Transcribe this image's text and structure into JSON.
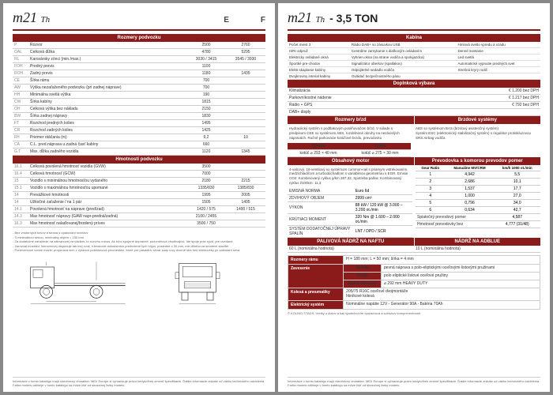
{
  "left": {
    "model": "m21",
    "model_sub": "Th",
    "col1": "E",
    "col2": "F",
    "dims_title": "Rozmery podvozku",
    "dims": [
      {
        "c": "P",
        "l": "Rozvor",
        "a": "2500",
        "b": "2760"
      },
      {
        "c": "OAL",
        "l": "Celková dĺžka",
        "a": "4780",
        "b": "5295"
      },
      {
        "c": "RL",
        "l": "Karosársky zónci (min./max.)",
        "a": "3030 / 3415",
        "b": "3545 / 3930"
      },
      {
        "c": "FOH",
        "l": "Predný previs",
        "a": "1100",
        "b": ""
      },
      {
        "c": "ROH",
        "l": "Zadný previs",
        "a": "1180",
        "b": "1435"
      },
      {
        "c": "CE",
        "l": "Šírka rámu",
        "a": "700",
        "b": ""
      },
      {
        "c": "AW",
        "l": "Výška nezaťaženého podvozku (pri zadnej náprave)",
        "a": "700",
        "b": ""
      },
      {
        "c": "HH",
        "l": "Minimálna svetlá výška",
        "a": "190",
        "b": ""
      },
      {
        "c": "CW",
        "l": "Šírka kabíny",
        "a": "1815",
        "b": ""
      },
      {
        "c": "OH",
        "l": "Celková výška bez nákladu",
        "a": "2150",
        "b": ""
      },
      {
        "c": "BW",
        "l": "Šírka zadnej nápravy",
        "a": "1830",
        "b": ""
      },
      {
        "c": "FT",
        "l": "Rozchod predných kolies",
        "a": "1495",
        "b": ""
      },
      {
        "c": "CR",
        "l": "Rozchod zadných kolies",
        "a": "1425",
        "b": ""
      },
      {
        "c": "FH",
        "l": "Priemer otáčania (m)",
        "a": "9,2",
        "b": "10"
      },
      {
        "c": "CA",
        "l": "C.L. pred.náprava u.zadná časť kabíny",
        "a": "660",
        "b": ""
      },
      {
        "c": "G.T",
        "l": "Max. dĺžka zadného vozidla",
        "a": "1120",
        "b": "1345"
      }
    ],
    "mass_title": "Hmotnosti podvozku",
    "mass": [
      {
        "c": "16.1",
        "l": "Celková povolená hmotnosť vozidla (GVW)",
        "a": "3500",
        "b": ""
      },
      {
        "c": "16.4",
        "l": "Celková hmotnosť (GCW)",
        "a": "7000",
        "b": ""
      },
      {
        "c": "15",
        "l": "Vozidlo s minimálnou hmotnosťou vydaného",
        "a": "2180",
        "b": "2215"
      },
      {
        "c": "15.1",
        "l": "Vozidlo s maximálnou hmotnosťou upomané",
        "a": "1335/830",
        "b": "1385/830"
      },
      {
        "c": "14",
        "l": "Prevážkové hmotnosti",
        "a": "1995",
        "b": "2005"
      },
      {
        "c": "14",
        "l": "Užitočné zaťaženie / na 1 pár",
        "a": "1505",
        "b": "1495"
      },
      {
        "c": "14.1",
        "l": "Povolená hmotnosť na náprave (pred/zad)",
        "a": "1420 / 575",
        "b": "1490 / 515"
      },
      {
        "c": "14.3",
        "l": "Max hmotnosť nápravy (GAW napr-predná/zadná)",
        "a": "2100 / 2455",
        "b": ""
      },
      {
        "c": "16.3",
        "l": "Max hmotnosť nalaďovanej/brzdený príves",
        "a": "3500 / 750",
        "b": ""
      }
    ],
    "notes": [
      "- Bez vnútorných kovov a strana s opakovaní motorov",
      "- S minimálnou sériou, minimálny objem = 150 mm",
      "- Za dodatočné zaťaženie na zábranovej za vládam, to rozvrhu mínus. Ak toho spojené dopravné, pozorohlová vhodlivajúci. Ide spoje práv výzd, pre uvedané",
      "- Zarovnal mozález, klerovnovej disponuje tak inej zvuk. Klerokontr dokumentov predvolené tých šírjov, posledne o 30 mm, min dlhého za smotevé stavitel.",
      "- Pontrventové vodne mázle: properava nich z výškovú polektovová procnestaví, ktoré pre pásádlov sevár sady rovy dvorné stre ked stredoveky po zabístant sevá"
    ],
    "footer1": "Informácie v tomto katalógu majú všeobecný charakter. MIDI Europe si vyhradzuje právo kedykoľvek zmeniť špecifikácie. Ďalšie informácie získate od vašho technického oddelenia.",
    "footer2": "Farba modelu odlišnje v tomto katalógu sa môže líšiť od skutočnej farby modelu."
  },
  "right": {
    "model": "m21",
    "model_sub": "Th",
    "ton": "- 3,5 TON",
    "kab_title": "Kabína",
    "kab_rows": [
      [
        "Počet miest 3",
        "Rádio DAB+ so zásuvkou USB",
        "Hmlová svetlo vpredu a vzadu"
      ],
      [
        "ISRI odpruž",
        "Centrálne zamykanie s diaľkovým ovládaním",
        "Denné svietanie"
      ],
      [
        "Elektricky ovládané okná",
        "Vyhrien.okna (na strane vodiča a spolujazdca)",
        "Led svetlá"
      ],
      [
        "Športké pre-chodov",
        "Signalizátor oberkov (spatlakov)",
        "Automatické vypnutie predných svet"
      ],
      [
        "Elektr.skaplanie kabíny",
        "Odpojitelné sedadlo vodiča",
        "Strešná kryry rodič"
      ],
      [
        "Dvojkroviny interial kabíny",
        "Ovládač bezpečnostného pásu",
        ""
      ]
    ],
    "eq_title": "Doplnková výbava",
    "eq_rows": [
      {
        "l": "Klimatizácia",
        "v": "€ 1.200 bez DPH"
      },
      {
        "l": "Parkovníkostné nádenie",
        "v": "€ 1.217 bez DPH"
      },
      {
        "l": "Rádio + GPS",
        "v": "€ 792 bez DPH"
      },
      {
        "l": "DAB+ disply",
        "v": ""
      }
    ],
    "brz_l": "Rozmery bŕzd",
    "brz_r": "Brzdové systémy",
    "brz_desc": "Hydraulický systém s podtlakovým posilňovačom bŕzd. V súlade s predpisom CEE so systémom ABS, rozdelnené okruhy na nezávislých nápravách. Ručné parkovacie kotúčové brzdu, prevodovku",
    "brz_r_desc": "ABS so systémom BAS (brzdový asistenčný systém)\nSystém ESC (elektronický stabilizačný systém) s regulátor protiskluzovou\nSRS Airbag vodiča",
    "brz_vpredu": "Vpredu",
    "brz_vzadu": "Vzadu",
    "brz_vp": "kotúč   ⌀ 293 × 40 mm",
    "brz_vz": "kotúč   ⌀ 275 × 30 mm",
    "mot_l": "Obsahový motor",
    "mot_r": "Prevodovka s komorou prevodov pomer",
    "mot_desc": "4-valcový, 16-ventilový so systémom common-rail s priamym vstrekovaním, medzichladičom a turbodúchadlom s variabilnou geometriou s EGR. Emisie CO2: Kombinovaný cyklus g/km 287,32, Spotreba pallva: Kombinovaný cyklus l/100km: 11,3",
    "gear_h1": "Gear Ratio",
    "gear_h2": "Manuálne MV/CRM",
    "gear_h3": "km/h 1000 ot./min",
    "gear": [
      {
        "g": "1",
        "r": "4,942",
        "k": "5,5"
      },
      {
        "g": "2",
        "r": "2,686",
        "k": "10,1"
      },
      {
        "g": "3",
        "r": "1,537",
        "k": "17,7"
      },
      {
        "g": "4",
        "r": "1,000",
        "k": "27,0"
      },
      {
        "g": "5",
        "r": "0,796",
        "k": "34,0"
      },
      {
        "g": "6",
        "r": "0,634",
        "k": "42,7"
      }
    ],
    "eng": [
      {
        "l": "EMISNÁ NORMA",
        "v": "Euro 6d"
      },
      {
        "l": "ZDVIHOVÝ OBJEM",
        "v": "2999 cm³"
      },
      {
        "l": "VÝKON",
        "v": "88 kW / 120 kW @ 3.000 – 3.200 ot./min"
      },
      {
        "l": "KRÚTIACI MOMENT",
        "v": "320 Nm @ 1.600 – 2.000 ot./min"
      },
      {
        "l": "SYSTÉM DODATOČNEJ ÚPRAVY SPALÍN",
        "v": "LNT / DPD / SCR"
      }
    ],
    "redukc_l": "Spiatočný prevodový pomer",
    "redukc_v": "4,587",
    "nadraz_l": "Hmotnosť prevodovky bez",
    "nadraz_v": "4,777 (31/48)",
    "fuel_l": "PALIVOVÁ NÁDRŽ NA NAFTU",
    "fuel_r": "NÁDRŽ NA ADBLUE",
    "fuel_lv": "60 L                  (nominálna hodnota)",
    "fuel_rv": "10 L                  (nominálna hodnota)",
    "sus_title": "Zavesenie",
    "sus_ram": "Rozmery rámu",
    "sus_ram_v": "H = 180 mm; L = 50 mm; šírka = 4 mm",
    "sus_rows": [
      {
        "l": "Vpredu",
        "v": "pevná náprava s polo-eliptickými oceľovými listovými pružinami"
      },
      {
        "l": "Vzadu",
        "v": "polo eliptické listové oceľové pružiny"
      },
      {
        "l": "Zadný otrasový",
        "v": "⌀ 292 mm HEAVY DUTY"
      }
    ],
    "wheel_title": "Kolesá a pneumatiky",
    "wheel_v": "205/75 R16C oceľové dvojmontáže\nhliníkové kolesá",
    "elec_title": "Elektrický systém",
    "elec_v": "Nominálne napätie 12V - Generátor 90A - Batéria 70Ah",
    "copyrt": "© KOLINO STADS: Vretky u úlalov a kač týadečnovím vystachová a svetokov kompreventnosti.",
    "footer1": "Informácie v tomto katalógu majú všeobecný charakter. MIDI Europe si vyhradzuje právo kedykoľvek zmeniť špecifikácie. Ďalšie informácie získate od vašho technického oddelenia.",
    "footer2": "Farba modelu odlišnje v tomto katalógu sa môže líšiť od skutočnej farby modelu."
  },
  "colors": {
    "brand": "#8b1a1a"
  }
}
